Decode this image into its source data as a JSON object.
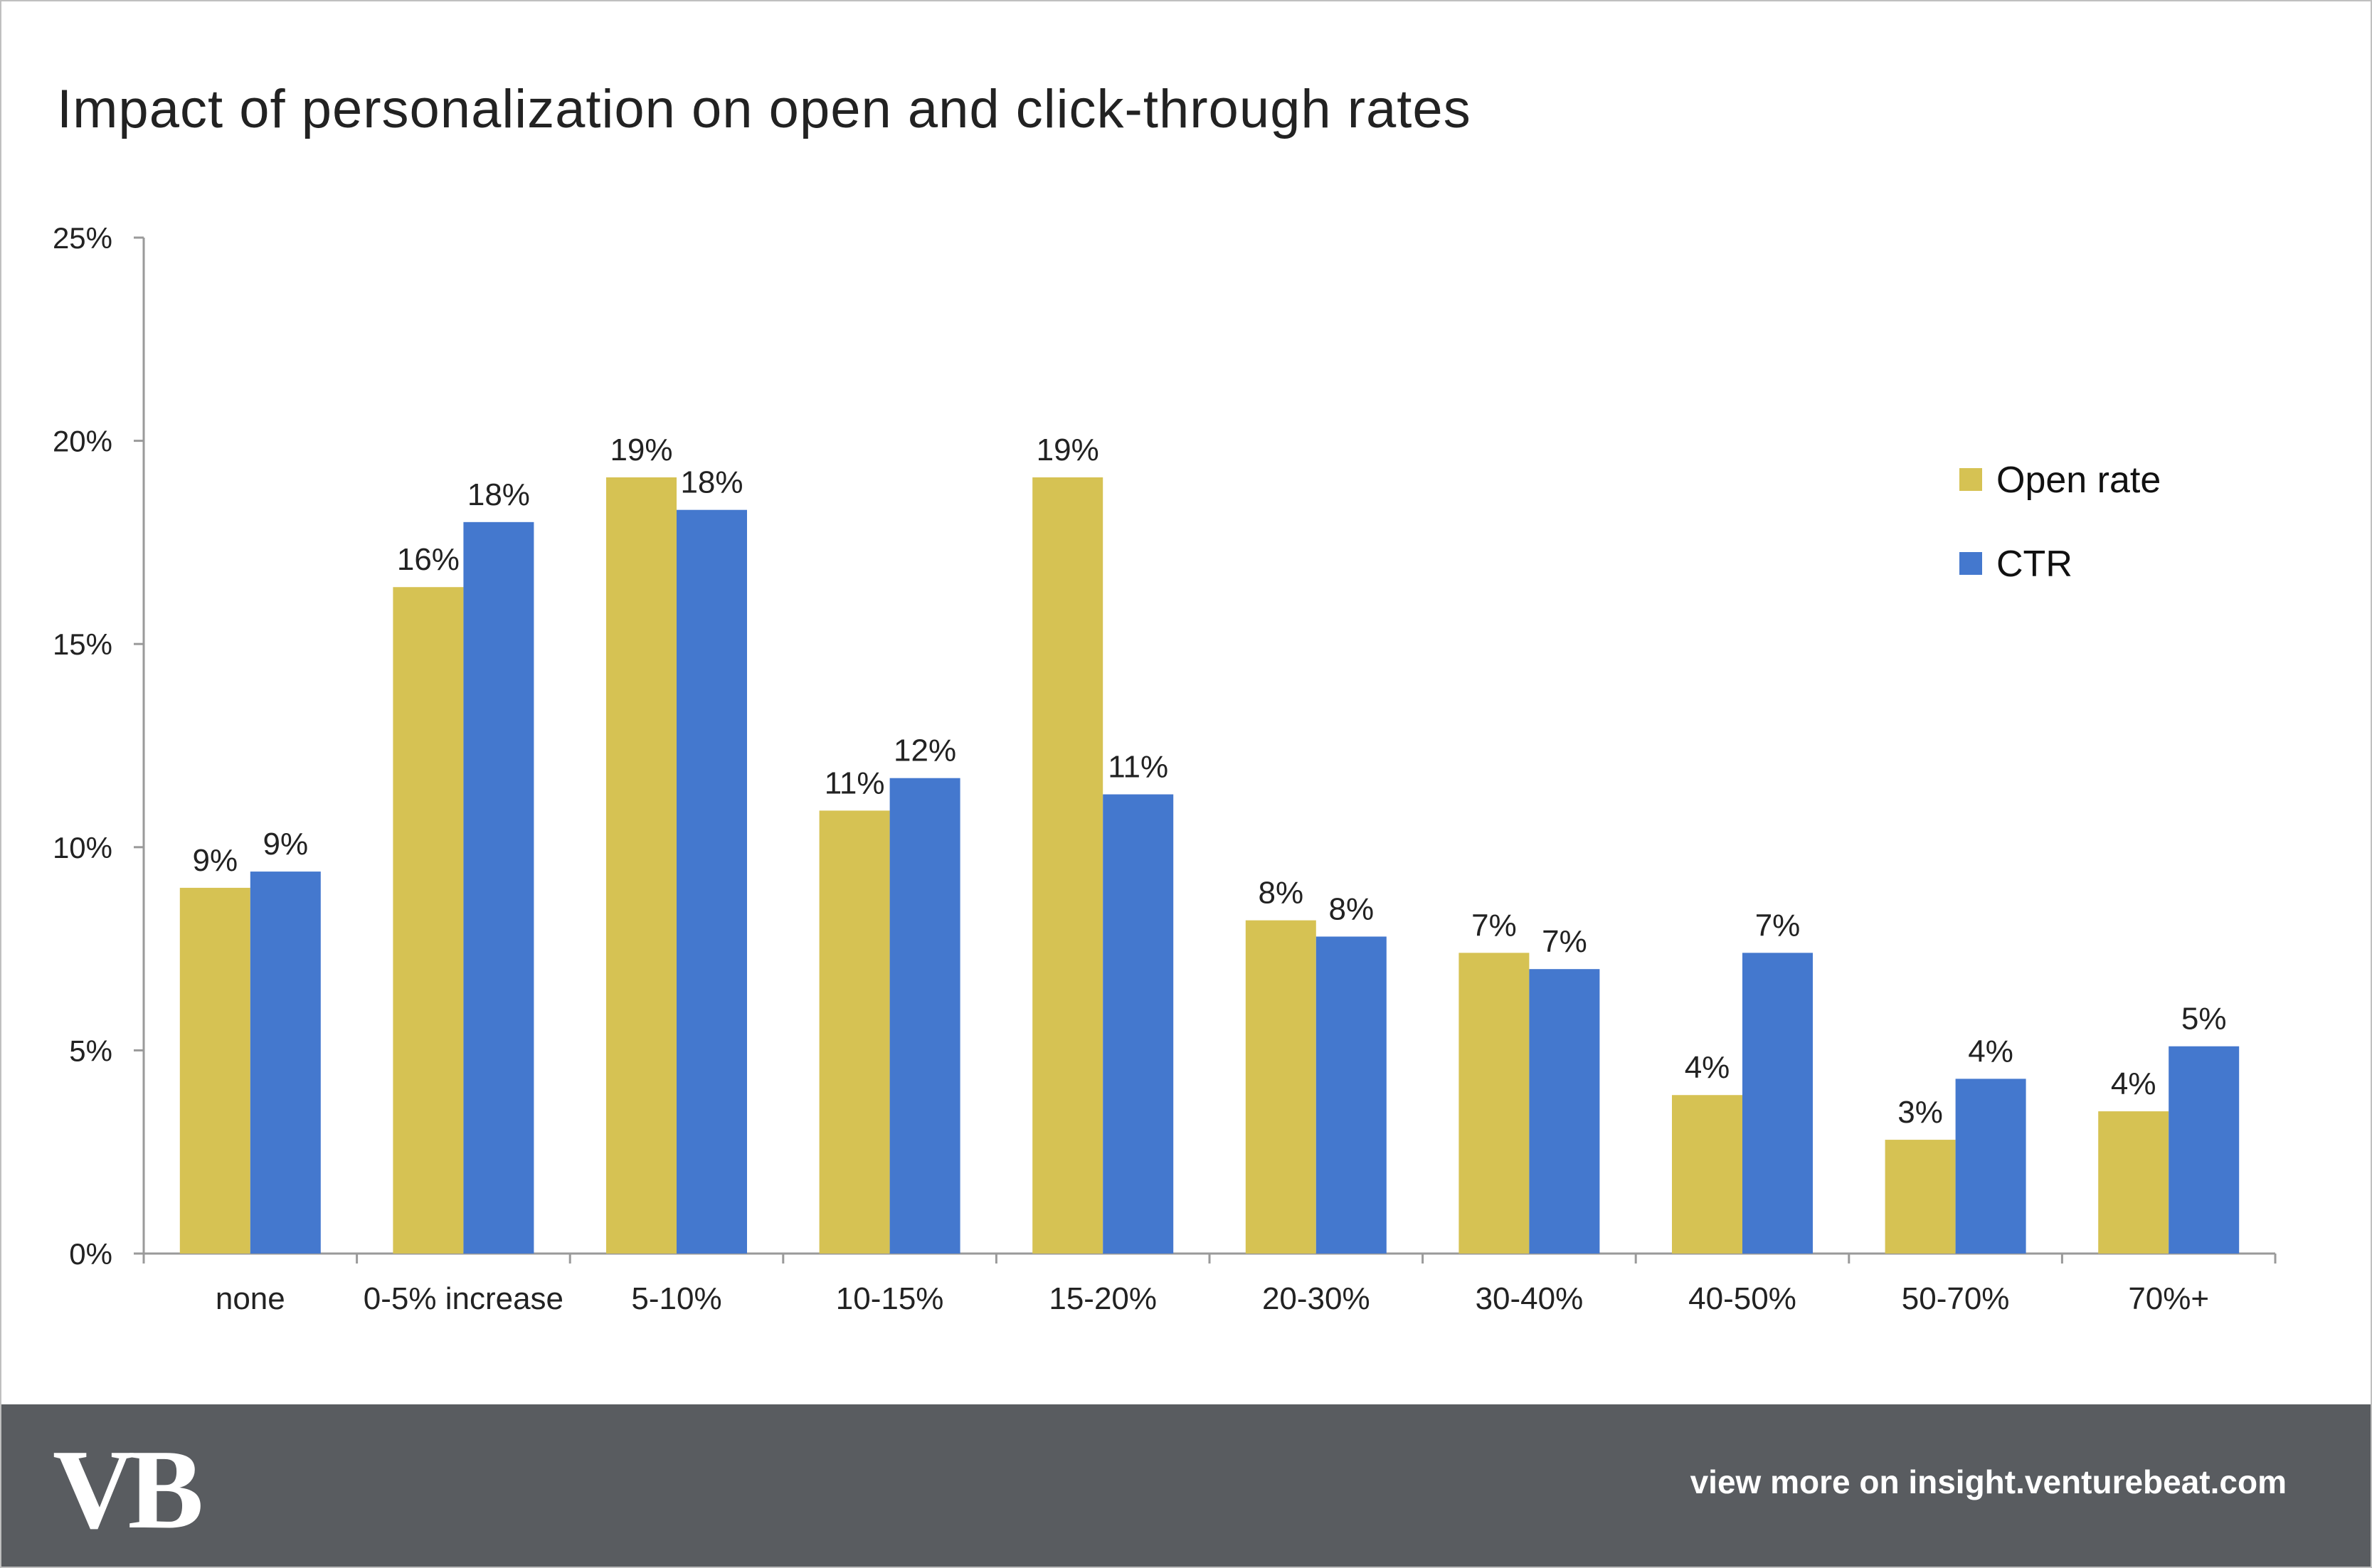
{
  "chart_data": {
    "type": "bar",
    "title": "Impact of personalization on open and click-through rates",
    "categories": [
      "none",
      "0-5% increase",
      "5-10%",
      "10-15%",
      "15-20%",
      "20-30%",
      "30-40%",
      "40-50%",
      "50-70%",
      "70%+"
    ],
    "series": [
      {
        "name": "Open rate",
        "color": "#d6c253",
        "values": [
          9.0,
          16.4,
          19.1,
          10.9,
          19.1,
          8.2,
          7.4,
          3.9,
          2.8,
          3.5
        ],
        "labels": [
          "9%",
          "16%",
          "19%",
          "11%",
          "19%",
          "8%",
          "7%",
          "4%",
          "3%",
          "4%"
        ]
      },
      {
        "name": "CTR",
        "color": "#4478ce",
        "values": [
          9.4,
          18.0,
          18.3,
          11.7,
          11.3,
          7.8,
          7.0,
          7.4,
          4.3,
          5.1
        ],
        "labels": [
          "9%",
          "18%",
          "18%",
          "12%",
          "11%",
          "8%",
          "7%",
          "7%",
          "4%",
          "5%"
        ]
      }
    ],
    "ylim": [
      0,
      25
    ],
    "yticks": [
      0,
      5,
      10,
      15,
      20,
      25
    ],
    "ytick_labels": [
      "0%",
      "5%",
      "10%",
      "15%",
      "20%",
      "25%"
    ],
    "grid": false,
    "legend_position": "top-right"
  },
  "footer": {
    "logo_text": "VB",
    "link_text": "view more on insight.venturebeat.com"
  },
  "colors": {
    "footer_bg": "#595c60",
    "axis": "#9a9a9a"
  }
}
